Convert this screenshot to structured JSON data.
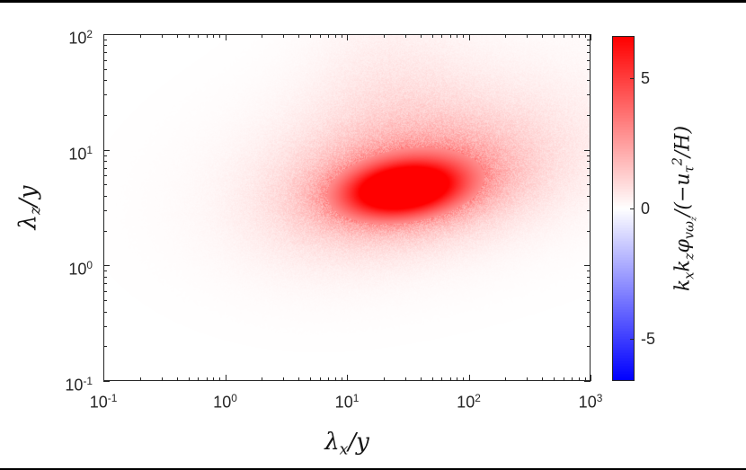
{
  "figure": {
    "background": "#ffffff",
    "frame_color": "#262626",
    "window_edge_color": "#000000"
  },
  "chart_data": {
    "type": "heatmap",
    "title": "",
    "xlabel": "λ_x/y",
    "ylabel": "λ_z/y",
    "x_scale": "log",
    "y_scale": "log",
    "xlim": [
      0.1,
      1000
    ],
    "ylim": [
      0.1,
      100
    ],
    "grid": false,
    "legend": false,
    "x_ticks": {
      "exponents": [
        -1,
        0,
        1,
        2,
        3
      ],
      "labels": [
        "10^{-1}",
        "10^{0}",
        "10^{1}",
        "10^{2}",
        "10^{3}"
      ]
    },
    "y_ticks": {
      "exponents": [
        -1,
        0,
        1,
        2
      ],
      "labels": [
        "10^{-1}",
        "10^{0}",
        "10^{1}",
        "10^{2}"
      ]
    },
    "colormap": "blue-white-red",
    "colorbar": {
      "label": "k_xk_zφ_{vω_z}/(−u_τ^2/H)",
      "tick_values": [
        5,
        0,
        -5
      ],
      "tick_labels": [
        "5",
        "0",
        "-5"
      ],
      "clim": [
        -6.6,
        6.6
      ]
    },
    "peak": {
      "lambda_x_over_y": 30,
      "lambda_z_over_y": 4.5,
      "value": 6.5
    },
    "field_gaussians_log10": [
      {
        "amp": 7.5,
        "cx": 1.46,
        "cz": 0.66,
        "sx": 0.32,
        "sz": 0.15,
        "theta": 8
      },
      {
        "amp": 2.2,
        "cx": 1.58,
        "cz": 0.72,
        "sx": 0.6,
        "sz": 0.3,
        "theta": 10
      },
      {
        "amp": 0.85,
        "cx": 1.7,
        "cz": 0.92,
        "sx": 1.0,
        "sz": 0.52,
        "theta": 12
      },
      {
        "amp": 0.4,
        "cx": 1.35,
        "cz": 1.5,
        "sx": 0.45,
        "sz": 0.55,
        "theta": 0
      },
      {
        "amp": 0.3,
        "cx": 0.9,
        "cz": 0.5,
        "sx": 0.55,
        "sz": 0.42,
        "theta": 15
      }
    ]
  }
}
